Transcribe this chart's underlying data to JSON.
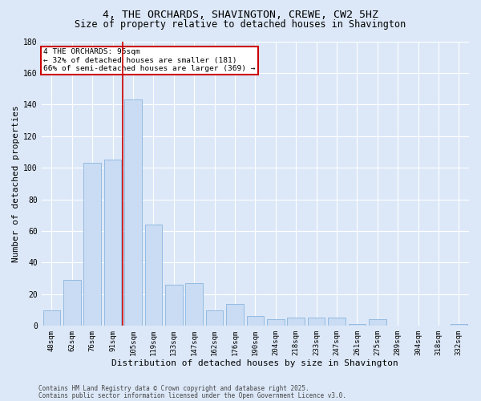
{
  "title_line1": "4, THE ORCHARDS, SHAVINGTON, CREWE, CW2 5HZ",
  "title_line2": "Size of property relative to detached houses in Shavington",
  "xlabel": "Distribution of detached houses by size in Shavington",
  "ylabel": "Number of detached properties",
  "categories": [
    "48sqm",
    "62sqm",
    "76sqm",
    "91sqm",
    "105sqm",
    "119sqm",
    "133sqm",
    "147sqm",
    "162sqm",
    "176sqm",
    "190sqm",
    "204sqm",
    "218sqm",
    "233sqm",
    "247sqm",
    "261sqm",
    "275sqm",
    "289sqm",
    "304sqm",
    "318sqm",
    "332sqm"
  ],
  "values": [
    10,
    29,
    103,
    105,
    143,
    64,
    26,
    27,
    10,
    14,
    6,
    4,
    5,
    5,
    5,
    1,
    4,
    0,
    0,
    0,
    1
  ],
  "bar_color": "#c9dcf3",
  "bar_edge_color": "#8ab4de",
  "redline_index": 3.5,
  "annotation_text": "4 THE ORCHARDS: 95sqm\n← 32% of detached houses are smaller (181)\n66% of semi-detached houses are larger (369) →",
  "annotation_box_facecolor": "#ffffff",
  "annotation_box_edgecolor": "#cc0000",
  "redline_color": "#cc0000",
  "ylim": [
    0,
    180
  ],
  "yticks": [
    0,
    20,
    40,
    60,
    80,
    100,
    120,
    140,
    160,
    180
  ],
  "footer_line1": "Contains HM Land Registry data © Crown copyright and database right 2025.",
  "footer_line2": "Contains public sector information licensed under the Open Government Licence v3.0.",
  "bg_color": "#dce8f8",
  "plot_bg_color": "#dce8f8",
  "grid_color": "#ffffff",
  "title_fontsize": 9.5,
  "subtitle_fontsize": 8.5,
  "tick_fontsize": 6.5,
  "label_fontsize": 8,
  "annotation_fontsize": 6.8,
  "footer_fontsize": 5.5
}
